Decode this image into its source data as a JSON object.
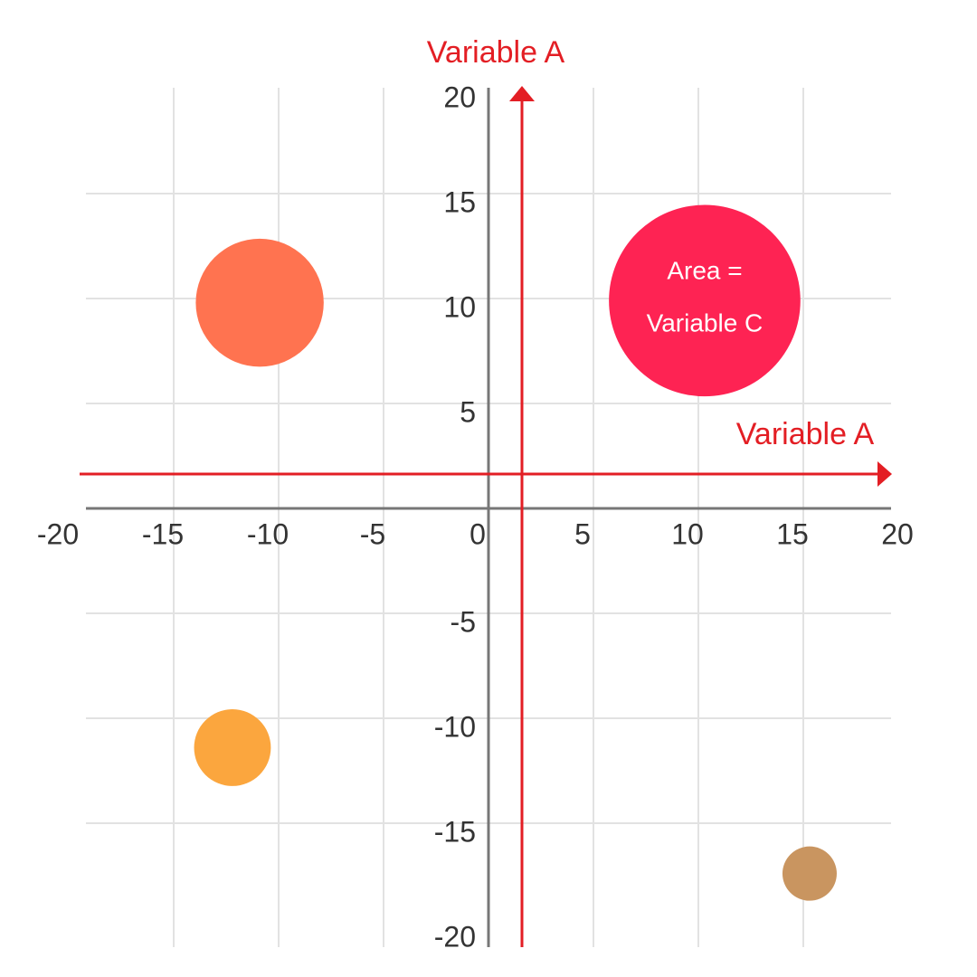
{
  "chart_data": {
    "type": "bubble",
    "x_label": "Variable A",
    "y_label": "Variable A",
    "size_label": [
      "Area =",
      "Variable C"
    ],
    "x": [
      -10.9,
      10.3,
      -12.2,
      15.3
    ],
    "values": [
      9.8,
      9.9,
      -11.4,
      -17.4
    ],
    "sizes": [
      50,
      112,
      18,
      9
    ],
    "colors": [
      "#ff7350",
      "#fe2353",
      "#fba63e",
      "#c99560"
    ],
    "xlim": [
      -20,
      20
    ],
    "ylim": [
      -20,
      20
    ],
    "xticks": [
      -20,
      -15,
      -10,
      -5,
      0,
      5,
      10,
      15,
      20
    ],
    "yticks": [
      -20,
      -15,
      -10,
      -5,
      5,
      10,
      15,
      20
    ],
    "grid": true
  }
}
